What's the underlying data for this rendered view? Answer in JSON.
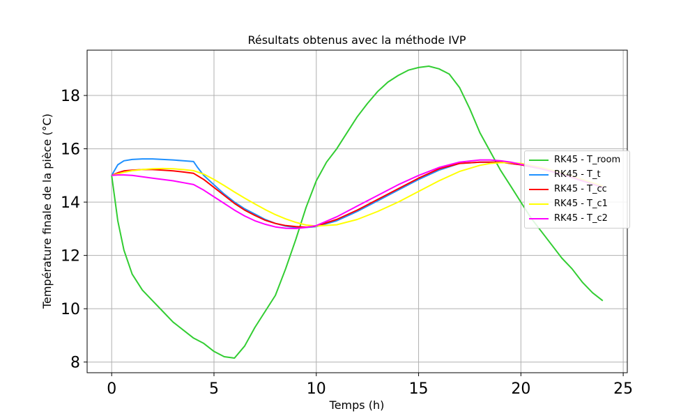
{
  "chart_data": {
    "type": "line",
    "title": "Résultats obtenus avec la méthode IVP",
    "xlabel": "Temps (h)",
    "ylabel": "Température finale de la pièce (°C)",
    "xlim": [
      -1.2,
      25.2
    ],
    "ylim": [
      7.6,
      19.7
    ],
    "xticks": [
      0,
      5,
      10,
      15,
      20,
      25
    ],
    "yticks": [
      8,
      10,
      12,
      14,
      16,
      18
    ],
    "grid": true,
    "legend_position": "center-right",
    "series": [
      {
        "name": "RK45 - T_room",
        "color": "#32cd32",
        "x": [
          0,
          0.3,
          0.6,
          1,
          1.5,
          2,
          2.5,
          3,
          3.5,
          4,
          4.5,
          5,
          5.5,
          6,
          6.5,
          7,
          7.5,
          8,
          8.5,
          9,
          9.5,
          10,
          10.5,
          11,
          11.5,
          12,
          12.5,
          13,
          13.5,
          14,
          14.5,
          15,
          15.5,
          16,
          16.5,
          17,
          17.5,
          18,
          18.5,
          19,
          19.5,
          20,
          20.5,
          21,
          21.5,
          22,
          22.5,
          23,
          23.5,
          24
        ],
        "y": [
          15.0,
          13.3,
          12.2,
          11.3,
          10.7,
          10.3,
          9.9,
          9.5,
          9.2,
          8.9,
          8.7,
          8.4,
          8.2,
          8.15,
          8.6,
          9.3,
          9.9,
          10.5,
          11.5,
          12.6,
          13.8,
          14.8,
          15.5,
          16.0,
          16.6,
          17.2,
          17.7,
          18.15,
          18.5,
          18.75,
          18.95,
          19.05,
          19.1,
          19.0,
          18.8,
          18.3,
          17.5,
          16.6,
          15.9,
          15.2,
          14.6,
          14.0,
          13.4,
          12.9,
          12.4,
          11.9,
          11.5,
          11.0,
          10.6,
          10.3
        ]
      },
      {
        "name": "RK45 - T_t",
        "color": "#1e90ff",
        "x": [
          0,
          0.3,
          0.6,
          1,
          1.5,
          2,
          2.5,
          3,
          3.5,
          4,
          4.2,
          4.5,
          5,
          5.5,
          6,
          6.5,
          7,
          7.5,
          8,
          8.5,
          9,
          9.5,
          10,
          11,
          12,
          13,
          14,
          15,
          16,
          17,
          18,
          18.5,
          19,
          19.5,
          20,
          21,
          22,
          23,
          24
        ],
        "y": [
          15.0,
          15.4,
          15.55,
          15.6,
          15.62,
          15.62,
          15.6,
          15.58,
          15.55,
          15.52,
          15.3,
          15.0,
          14.65,
          14.3,
          14.0,
          13.75,
          13.55,
          13.35,
          13.2,
          13.1,
          13.05,
          13.05,
          13.08,
          13.3,
          13.65,
          14.05,
          14.45,
          14.85,
          15.2,
          15.45,
          15.5,
          15.5,
          15.5,
          15.45,
          15.4,
          15.25,
          15.05,
          14.8,
          14.6
        ]
      },
      {
        "name": "RK45 - T_cc",
        "color": "#ff0000",
        "x": [
          0,
          0.3,
          0.6,
          1,
          1.5,
          2,
          2.5,
          3,
          3.5,
          4,
          4.5,
          5,
          5.5,
          6,
          6.5,
          7,
          7.5,
          8,
          8.5,
          9,
          9.5,
          10,
          11,
          12,
          13,
          14,
          15,
          16,
          17,
          18,
          18.5,
          19,
          19.5,
          20,
          21,
          22,
          23,
          24
        ],
        "y": [
          15.0,
          15.1,
          15.17,
          15.2,
          15.22,
          15.22,
          15.2,
          15.17,
          15.13,
          15.08,
          14.85,
          14.55,
          14.25,
          13.95,
          13.7,
          13.5,
          13.32,
          13.2,
          13.12,
          13.08,
          13.06,
          13.1,
          13.35,
          13.7,
          14.1,
          14.5,
          14.9,
          15.25,
          15.45,
          15.5,
          15.5,
          15.5,
          15.45,
          15.4,
          15.25,
          15.05,
          14.8,
          14.6
        ]
      },
      {
        "name": "RK45 - T_c1",
        "color": "#ffff00",
        "x": [
          0,
          0.3,
          0.6,
          1,
          1.5,
          2,
          2.5,
          3,
          3.5,
          4,
          4.5,
          5,
          5.5,
          6,
          6.5,
          7,
          7.5,
          8,
          8.5,
          9,
          9.5,
          10,
          11,
          12,
          13,
          14,
          15,
          16,
          17,
          18,
          18.5,
          19,
          19.5,
          20,
          21,
          22,
          23,
          24
        ],
        "y": [
          15.0,
          15.06,
          15.12,
          15.18,
          15.22,
          15.25,
          15.26,
          15.25,
          15.22,
          15.18,
          15.05,
          14.85,
          14.62,
          14.38,
          14.15,
          13.93,
          13.72,
          13.53,
          13.37,
          13.24,
          13.14,
          13.1,
          13.15,
          13.35,
          13.65,
          14.0,
          14.4,
          14.8,
          15.15,
          15.38,
          15.45,
          15.48,
          15.48,
          15.45,
          15.3,
          15.1,
          14.85,
          14.6
        ]
      },
      {
        "name": "RK45 - T_c2",
        "color": "#ff00ff",
        "x": [
          0,
          0.3,
          0.6,
          1,
          1.5,
          2,
          2.5,
          3,
          3.5,
          4,
          4.5,
          5,
          5.5,
          6,
          6.5,
          7,
          7.5,
          8,
          8.5,
          9,
          9.5,
          10,
          11,
          12,
          13,
          14,
          15,
          16,
          17,
          18,
          18.5,
          19,
          19.5,
          20,
          21,
          22,
          23,
          24
        ],
        "y": [
          15.0,
          15.02,
          15.02,
          15.0,
          14.95,
          14.9,
          14.85,
          14.8,
          14.73,
          14.66,
          14.45,
          14.2,
          13.95,
          13.7,
          13.48,
          13.3,
          13.17,
          13.07,
          13.02,
          13.01,
          13.05,
          13.12,
          13.45,
          13.85,
          14.25,
          14.65,
          15.0,
          15.3,
          15.5,
          15.58,
          15.58,
          15.55,
          15.5,
          15.42,
          15.25,
          15.05,
          14.8,
          14.55
        ]
      }
    ]
  }
}
